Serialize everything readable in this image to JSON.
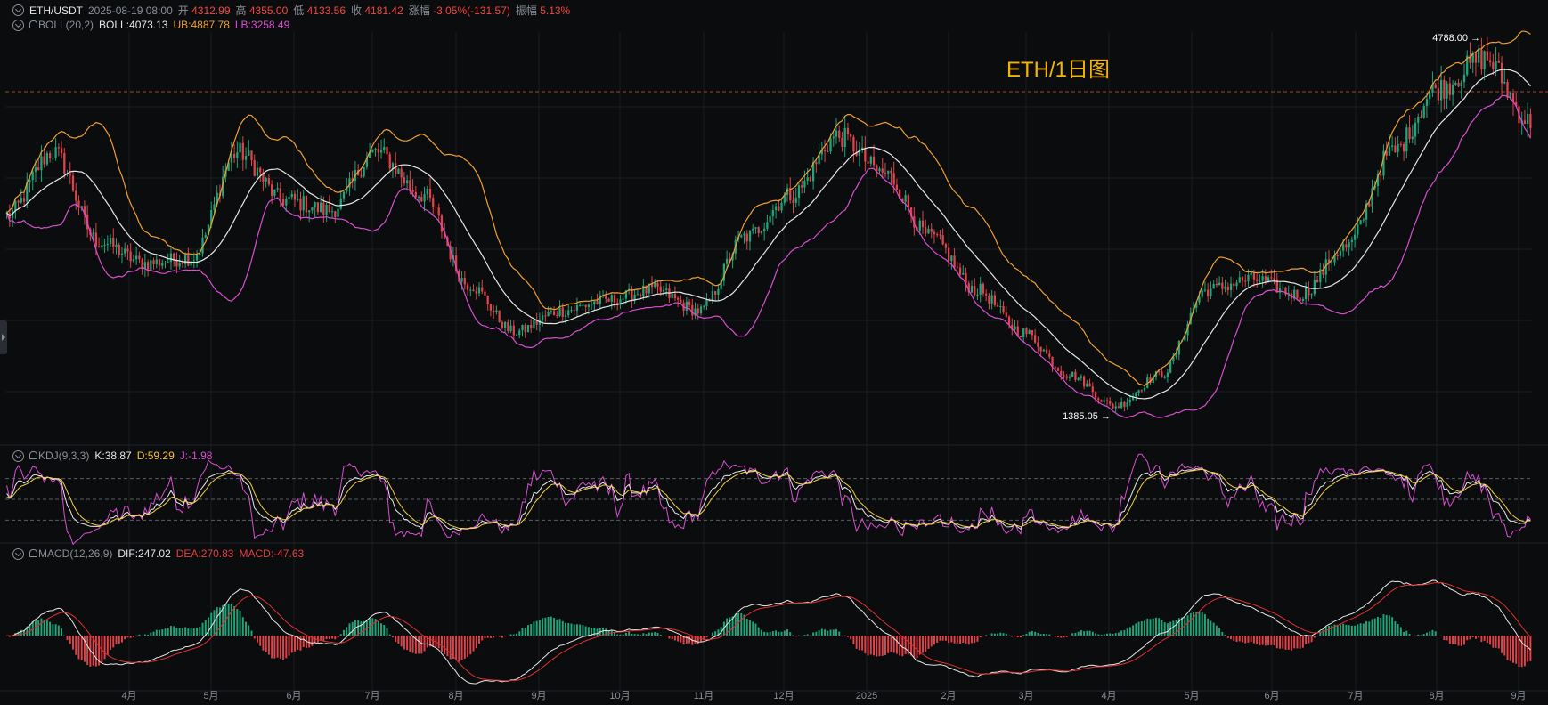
{
  "header": {
    "symbol": "ETH/USDT",
    "datetime": "2025-08-19 08:00",
    "open_label": "开",
    "open": "4312.99",
    "high_label": "高",
    "high": "4355.00",
    "low_label": "低",
    "low": "4133.56",
    "close_label": "收",
    "close": "4181.42",
    "change_label": "涨幅",
    "change": "-3.05%(-131.57)",
    "amplitude_label": "振幅",
    "amplitude": "5.13%"
  },
  "indicators": {
    "boll": {
      "name": "BOLL(20,2)",
      "mid_label": "BOLL:",
      "mid": "4073.13",
      "ub_label": "UB:",
      "ub": "4887.78",
      "lb_label": "LB:",
      "lb": "3258.49"
    },
    "kdj": {
      "name": "KDJ(9,3,3)",
      "k_label": "K:",
      "k": "38.87",
      "d_label": "D:",
      "d": "59.29",
      "j_label": "J:",
      "j": "-1.98"
    },
    "macd": {
      "name": "MACD(12,26,9)",
      "dif_label": "DIF:",
      "dif": "247.02",
      "dea_label": "DEA:",
      "dea": "270.83",
      "macd_label": "MACD:",
      "macd": "-47.63"
    }
  },
  "chart_title": "ETH/1日图",
  "colors": {
    "up": "#1fa67a",
    "down": "#e0444a",
    "ub": "#f0a030",
    "lb": "#d94fd0",
    "mid": "#e8e8e8",
    "k": "#e8e8e8",
    "d": "#f4d03f",
    "j": "#d94fd0",
    "dif": "#e8e8e8",
    "dea": "#e03030",
    "title": "#f4b400"
  },
  "chart_data": {
    "type": "candlestick",
    "x_axis_labels": [
      "4月",
      "5月",
      "6月",
      "7月",
      "8月",
      "9月",
      "10月",
      "11月",
      "12月",
      "2025",
      "2月",
      "3月",
      "4月",
      "5月",
      "6月",
      "7月",
      "8月",
      "9月"
    ],
    "annotations": [
      {
        "text": "4788.00",
        "kind": "max",
        "value": 4788.0
      },
      {
        "text": "1385.05",
        "kind": "min",
        "value": 1385.05
      }
    ],
    "price_key_points": [
      3300,
      3900,
      3050,
      2850,
      2900,
      3900,
      3450,
      3350,
      3900,
      3500,
      2650,
      2200,
      2400,
      2500,
      2600,
      2400,
      3100,
      3500,
      4050,
      3700,
      3100,
      2600,
      2200,
      1800,
      1500,
      1800,
      2600,
      2700,
      2550,
      3000,
      3900,
      4500,
      4788,
      4181
    ],
    "kdj_levels": [
      80,
      50,
      20
    ],
    "series": [
      {
        "name": "BOLL",
        "role": "mid"
      },
      {
        "name": "UB",
        "role": "upper"
      },
      {
        "name": "LB",
        "role": "lower"
      },
      {
        "name": "K"
      },
      {
        "name": "D"
      },
      {
        "name": "J"
      },
      {
        "name": "DIF"
      },
      {
        "name": "DEA"
      },
      {
        "name": "MACD"
      }
    ]
  }
}
